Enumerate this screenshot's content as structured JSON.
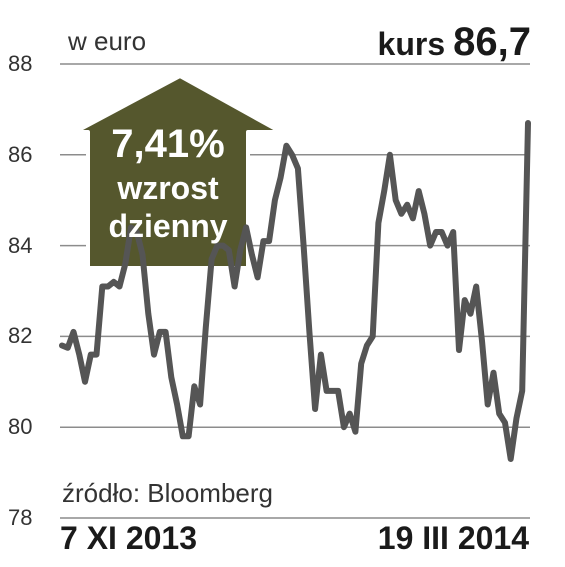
{
  "chart_data": {
    "type": "line",
    "unit_label": "w euro",
    "ylim": [
      78,
      88
    ],
    "y_ticks": [
      "88",
      "86",
      "84",
      "82",
      "80",
      "78"
    ],
    "x_labels": [
      "7 XI 2013",
      "19 III 2014"
    ],
    "source": "źródło: Bloomberg",
    "current": {
      "label": "kurs",
      "value": "86,7"
    },
    "badge": {
      "percent": "7,41%",
      "line1": "wzrost",
      "line2": "dzienny"
    },
    "series": [
      {
        "values": [
          81.8,
          81.75,
          82.1,
          81.6,
          81.0,
          81.6,
          81.6,
          83.1,
          83.1,
          83.2,
          83.1,
          83.6,
          84.4,
          84.3,
          83.8,
          82.5,
          81.6,
          82.1,
          82.1,
          81.1,
          80.5,
          79.8,
          79.8,
          80.9,
          80.5,
          82.2,
          83.7,
          84.0,
          84.0,
          83.9,
          83.1,
          83.9,
          84.4,
          83.8,
          83.3,
          84.1,
          84.1,
          85.0,
          85.5,
          86.2,
          86.0,
          85.7,
          84.0,
          82.1,
          80.4,
          81.6,
          80.8,
          80.8,
          80.8,
          80.0,
          80.3,
          79.9,
          81.4,
          81.8,
          82.0,
          84.5,
          85.2,
          86.0,
          85.0,
          84.7,
          84.9,
          84.6,
          85.2,
          84.7,
          84.0,
          84.3,
          84.3,
          84.0,
          84.3,
          81.7,
          82.8,
          82.5,
          83.1,
          81.9,
          80.5,
          81.2,
          80.3,
          80.1,
          79.3,
          80.2,
          80.8,
          86.7
        ]
      }
    ]
  }
}
